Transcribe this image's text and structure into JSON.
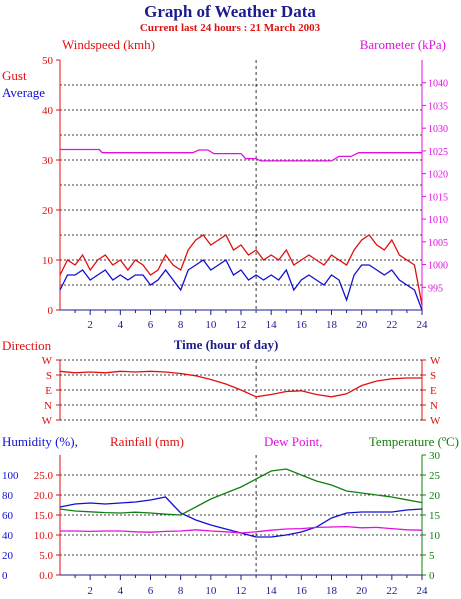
{
  "header": {
    "title": "Graph of Weather Data",
    "subtitle": "Current last 24 hours : 21 March 2003"
  },
  "colors": {
    "navy": "#1c1c8c",
    "red": "#e01010",
    "blue": "#1010d0",
    "magenta": "#e010e0",
    "green": "#108010",
    "black": "#000000"
  },
  "chart_data": [
    {
      "type": "line",
      "id": "wind",
      "labels": {
        "left_title": "Windspeed (kmh)",
        "right_title": "Barometer (kPa)",
        "series_gust": "Gust",
        "series_average": "Average",
        "xlabel": "Time (hour of day)"
      },
      "xlim": [
        0,
        24
      ],
      "x_ticks": [
        "2",
        "4",
        "6",
        "8",
        "10",
        "12",
        "14",
        "16",
        "18",
        "20",
        "22",
        "24"
      ],
      "y_left_lim": [
        0,
        50
      ],
      "y_left_ticks": [
        "0",
        "10",
        "20",
        "30",
        "40",
        "50"
      ],
      "y_right_lim": [
        990,
        1045
      ],
      "y_right_ticks": [
        "995",
        "1000",
        "1005",
        "1010",
        "1015",
        "1020",
        "1025",
        "1030",
        "1035",
        "1040"
      ],
      "vline_x": 13,
      "series": [
        {
          "name": "Gust",
          "axis": "left",
          "color": "red",
          "x": [
            0,
            0.5,
            1,
            1.5,
            2,
            2.5,
            3,
            3.5,
            4,
            4.5,
            5,
            5.5,
            6,
            6.5,
            7,
            7.5,
            8,
            8.5,
            9,
            9.5,
            10,
            10.5,
            11,
            11.5,
            12,
            12.5,
            13,
            13.5,
            14,
            14.5,
            15,
            15.5,
            16,
            16.5,
            17,
            17.5,
            18,
            18.5,
            19,
            19.5,
            20,
            20.5,
            21,
            21.5,
            22,
            22.5,
            23,
            23.5,
            24
          ],
          "y": [
            7,
            10,
            9,
            11,
            8,
            10,
            11,
            9,
            10,
            8,
            10,
            9,
            7,
            8,
            11,
            9,
            8,
            12,
            14,
            15,
            13,
            14,
            15,
            12,
            13,
            11,
            12,
            10,
            11,
            10,
            12,
            9,
            10,
            11,
            10,
            9,
            11,
            10,
            9,
            12,
            14,
            15,
            13,
            12,
            14,
            11,
            10,
            9,
            1
          ]
        },
        {
          "name": "Average",
          "axis": "left",
          "color": "blue",
          "x": [
            0,
            0.5,
            1,
            1.5,
            2,
            2.5,
            3,
            3.5,
            4,
            4.5,
            5,
            5.5,
            6,
            6.5,
            7,
            7.5,
            8,
            8.5,
            9,
            9.5,
            10,
            10.5,
            11,
            11.5,
            12,
            12.5,
            13,
            13.5,
            14,
            14.5,
            15,
            15.5,
            16,
            16.5,
            17,
            17.5,
            18,
            18.5,
            19,
            19.5,
            20,
            20.5,
            21,
            21.5,
            22,
            22.5,
            23,
            23.5,
            24
          ],
          "y": [
            4,
            7,
            7,
            8,
            6,
            7,
            8,
            6,
            7,
            6,
            7,
            7,
            5,
            6,
            8,
            6,
            4,
            8,
            9,
            10,
            8,
            9,
            10,
            7,
            8,
            6,
            7,
            6,
            7,
            6,
            8,
            4,
            6,
            7,
            6,
            5,
            7,
            6,
            2,
            7,
            9,
            9,
            8,
            7,
            8,
            6,
            5,
            4,
            0
          ]
        },
        {
          "name": "Barometer",
          "axis": "right",
          "color": "magenta",
          "x": [
            0,
            2.6,
            2.8,
            3.2,
            8.8,
            9.2,
            9.8,
            10.2,
            12,
            12.3,
            13,
            13.3,
            18,
            18.5,
            19.3,
            19.8,
            24
          ],
          "y": [
            1025.3,
            1025.3,
            1024.6,
            1024.6,
            1024.6,
            1025.2,
            1025.2,
            1024.4,
            1024.4,
            1023.3,
            1023.3,
            1022.8,
            1022.8,
            1023.8,
            1023.8,
            1024.6,
            1024.6
          ]
        }
      ]
    },
    {
      "type": "line",
      "id": "direction",
      "labels": {
        "title": "Direction"
      },
      "xlim": [
        0,
        24
      ],
      "y_ticks": [
        "W",
        "S",
        "E",
        "N",
        "W"
      ],
      "vline_x": 13,
      "series": [
        {
          "name": "Direction",
          "color": "red",
          "x": [
            0,
            1,
            2,
            3,
            4,
            5,
            6,
            7,
            8,
            9,
            10,
            11,
            12,
            13,
            14,
            15,
            16,
            17,
            18,
            19,
            20,
            21,
            22,
            23,
            24
          ],
          "y": [
            3.25,
            3.15,
            3.2,
            3.15,
            3.25,
            3.2,
            3.25,
            3.2,
            3.1,
            2.95,
            2.7,
            2.4,
            2.0,
            1.55,
            1.7,
            1.9,
            1.95,
            1.7,
            1.55,
            1.75,
            2.3,
            2.6,
            2.75,
            2.8,
            2.8
          ]
        }
      ]
    },
    {
      "type": "line",
      "id": "humidity",
      "labels": {
        "humidity": "Humidity (%),",
        "rainfall": "Rainfall (mm)",
        "dewpoint": "Dew Point,",
        "temperature": "Temperature (ºC)"
      },
      "xlim": [
        0,
        24
      ],
      "x_ticks": [
        "2",
        "4",
        "6",
        "8",
        "10",
        "12",
        "14",
        "16",
        "18",
        "20",
        "22",
        "24"
      ],
      "humidity_lim": [
        0,
        120
      ],
      "humidity_ticks": [
        "0",
        "20",
        "40",
        "60",
        "80",
        "100"
      ],
      "rain_lim": [
        0,
        30
      ],
      "rain_ticks": [
        "0.0",
        "5.0",
        "10.0",
        "15.0",
        "20.0",
        "25.0"
      ],
      "temp_lim": [
        0,
        30
      ],
      "temp_ticks": [
        "0",
        "5",
        "10",
        "15",
        "20",
        "25",
        "30"
      ],
      "vline_x": 13,
      "series": [
        {
          "name": "Humidity",
          "axis": "humidity",
          "color": "blue",
          "x": [
            0,
            1,
            2,
            3,
            4,
            5,
            6,
            7,
            7.5,
            8,
            9,
            10,
            11,
            12,
            13,
            14,
            15,
            16,
            17,
            18,
            19,
            20,
            21,
            22,
            23,
            24
          ],
          "y": [
            68,
            71,
            72,
            71,
            72,
            73,
            75,
            78,
            70,
            62,
            55,
            50,
            46,
            42,
            38,
            38,
            40,
            43,
            48,
            57,
            62,
            63,
            63,
            63,
            65,
            66
          ]
        },
        {
          "name": "Temperature",
          "axis": "temp",
          "color": "green",
          "x": [
            0,
            1,
            2,
            3,
            4,
            5,
            6,
            7,
            8,
            9,
            10,
            11,
            12,
            13,
            14,
            15,
            16,
            17,
            18,
            19,
            20,
            21,
            22,
            23,
            24
          ],
          "y": [
            16.5,
            16,
            15.8,
            15.6,
            15.5,
            15.7,
            15.5,
            15.2,
            15,
            17,
            19,
            20.5,
            22,
            24,
            26,
            26.5,
            25,
            23.5,
            22.5,
            21,
            20.5,
            20,
            19.5,
            18.8,
            18.1
          ]
        },
        {
          "name": "Dew Point",
          "axis": "temp",
          "color": "magenta",
          "x": [
            0,
            1,
            2,
            3,
            4,
            5,
            6,
            7,
            8,
            9,
            10,
            11,
            12,
            13,
            14,
            15,
            16,
            17,
            18,
            19,
            20,
            21,
            22,
            23,
            24
          ],
          "y": [
            11,
            11,
            10.9,
            11,
            11,
            10.8,
            10.7,
            10.9,
            11,
            11.3,
            11,
            10.8,
            10.5,
            10.8,
            11.2,
            11.5,
            11.6,
            11.9,
            12,
            12.1,
            11.8,
            11.9,
            11.6,
            11.3,
            11.2
          ]
        }
      ]
    }
  ]
}
